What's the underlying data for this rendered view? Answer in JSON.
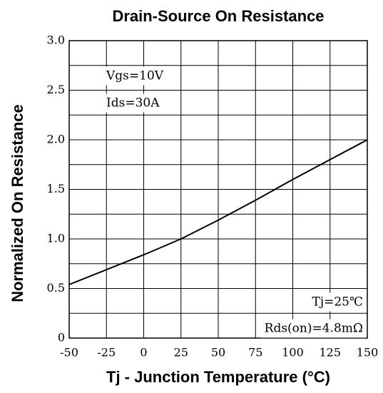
{
  "chart_data": {
    "type": "line",
    "title": "Drain-Source On Resistance",
    "x_label": "Tj - Junction Temperature (°C)",
    "y_label": "Normalized On Resistance",
    "x": [
      -50,
      -25,
      0,
      25,
      50,
      75,
      100,
      125,
      150
    ],
    "series": [
      {
        "color": "#000000",
        "values": [
          0.54,
          0.69,
          0.84,
          1.0,
          1.19,
          1.39,
          1.6,
          1.8,
          2.0
        ]
      }
    ],
    "xlim": [
      -50,
      150
    ],
    "xticks": [
      -50,
      -25,
      0,
      25,
      50,
      75,
      100,
      125,
      150
    ],
    "ylim": [
      0,
      3
    ],
    "yticks": [
      0,
      {
        "value": 0.5,
        "label": "0.5"
      },
      {
        "value": 1,
        "label": "1.0"
      },
      {
        "value": 1.5,
        "label": "1.5"
      },
      {
        "value": 2,
        "label": "2.0"
      },
      {
        "value": 2.5,
        "label": "2.5"
      },
      {
        "value": 3,
        "label": "3.0"
      }
    ],
    "minor_yticks": [
      0.25,
      0.75,
      1.25,
      1.75,
      2.25,
      2.75
    ],
    "grid": true,
    "annotations": [
      "Vgs=10V",
      "Ids=30A",
      "Tj=25℃",
      "Rds(on)=4.8mΩ"
    ]
  }
}
